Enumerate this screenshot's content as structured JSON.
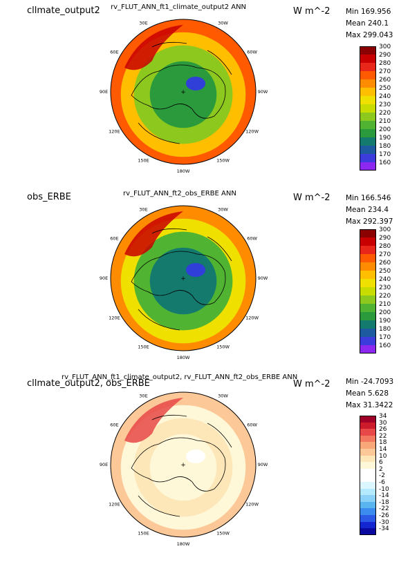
{
  "panels": [
    {
      "left_title": "cllmate_output2",
      "center_title": "rv_FLUT_ANN_ft1_climate_output2  ANN",
      "units": "W m^-2",
      "stats": {
        "min": "Min 169.956",
        "mean": "Mean 240.1",
        "max": "Max 299.043"
      },
      "colorbar": {
        "labels": [
          "300",
          "290",
          "280",
          "270",
          "260",
          "250",
          "240",
          "230",
          "220",
          "210",
          "200",
          "190",
          "180",
          "170",
          "160"
        ],
        "colors": [
          "#8b0000",
          "#c80000",
          "#e8261a",
          "#ff5a00",
          "#ff8c00",
          "#ffbe00",
          "#f0e000",
          "#c8dc00",
          "#8cc81e",
          "#50b432",
          "#2a9a3c",
          "#147a6e",
          "#1e5aa0",
          "#3c3cdc",
          "#8c28f0"
        ]
      },
      "lon_labels": [
        "30E",
        "30W",
        "60E",
        "60W",
        "90E",
        "90W",
        "120E",
        "120W",
        "150E",
        "150W",
        "180W"
      ],
      "field": {
        "pole": "#2f3fd8",
        "inner": "#2a9a3c",
        "mid": "#8cc81e",
        "outer": "#ffbe00",
        "rim": "#ff5a00",
        "hot": "#c80000"
      }
    },
    {
      "left_title": "obs_ERBE",
      "center_title": "rv_FLUT_ANN_ft2_obs_ERBE  ANN",
      "units": "W m^-2",
      "stats": {
        "min": "Min 166.546",
        "mean": "Mean 234.4",
        "max": "Max 292.397"
      },
      "colorbar": {
        "labels": [
          "300",
          "290",
          "280",
          "270",
          "260",
          "250",
          "240",
          "230",
          "220",
          "210",
          "200",
          "190",
          "180",
          "170",
          "160"
        ],
        "colors": [
          "#8b0000",
          "#c80000",
          "#e8261a",
          "#ff5a00",
          "#ff8c00",
          "#ffbe00",
          "#f0e000",
          "#c8dc00",
          "#8cc81e",
          "#50b432",
          "#2a9a3c",
          "#147a6e",
          "#1e5aa0",
          "#3c3cdc",
          "#8c28f0"
        ]
      },
      "lon_labels": [
        "30E",
        "30W",
        "60E",
        "60W",
        "90E",
        "90W",
        "120E",
        "120W",
        "150E",
        "150W",
        "180W"
      ],
      "field": {
        "pole": "#2f3fd8",
        "inner": "#147a6e",
        "mid": "#50b432",
        "outer": "#f0e000",
        "rim": "#ff8c00",
        "hot": "#c80000"
      }
    },
    {
      "left_title": "cllmate_output2, obs_ERBE",
      "center_title": "rv_FLUT_ANN_ft1_climate_output2, rv_FLUT_ANN_ft2_obs_ERBE  ANN",
      "units": "W m^-2",
      "stats": {
        "min": "Min -24.7093",
        "mean": "Mean 5.628",
        "max": "Max 31.3422"
      },
      "colorbar": {
        "labels": [
          "34",
          "30",
          "26",
          "22",
          "18",
          "14",
          "10",
          "6",
          "2",
          "-2",
          "-6",
          "-10",
          "-14",
          "-18",
          "-22",
          "-26",
          "-30",
          "-34"
        ],
        "colors": [
          "#a00028",
          "#cc1c2c",
          "#e84848",
          "#f27860",
          "#f8a878",
          "#fcc898",
          "#fde6b8",
          "#fff8d8",
          "#ffffff",
          "#ffffff",
          "#dcf6ff",
          "#b4eaff",
          "#8cd2f8",
          "#5ab4f0",
          "#3c8cf0",
          "#2a5ae6",
          "#1426d0",
          "#0a0aa0"
        ]
      },
      "lon_labels": [
        "30E",
        "30W",
        "60E",
        "60W",
        "90E",
        "90W",
        "120E",
        "120W",
        "150E",
        "150W",
        "180W"
      ],
      "field": {
        "pole": "#ffffff",
        "inner": "#fff8d8",
        "mid": "#fde6b8",
        "outer": "#fff8d8",
        "rim": "#fcc898",
        "hot": "#e84848"
      }
    }
  ]
}
